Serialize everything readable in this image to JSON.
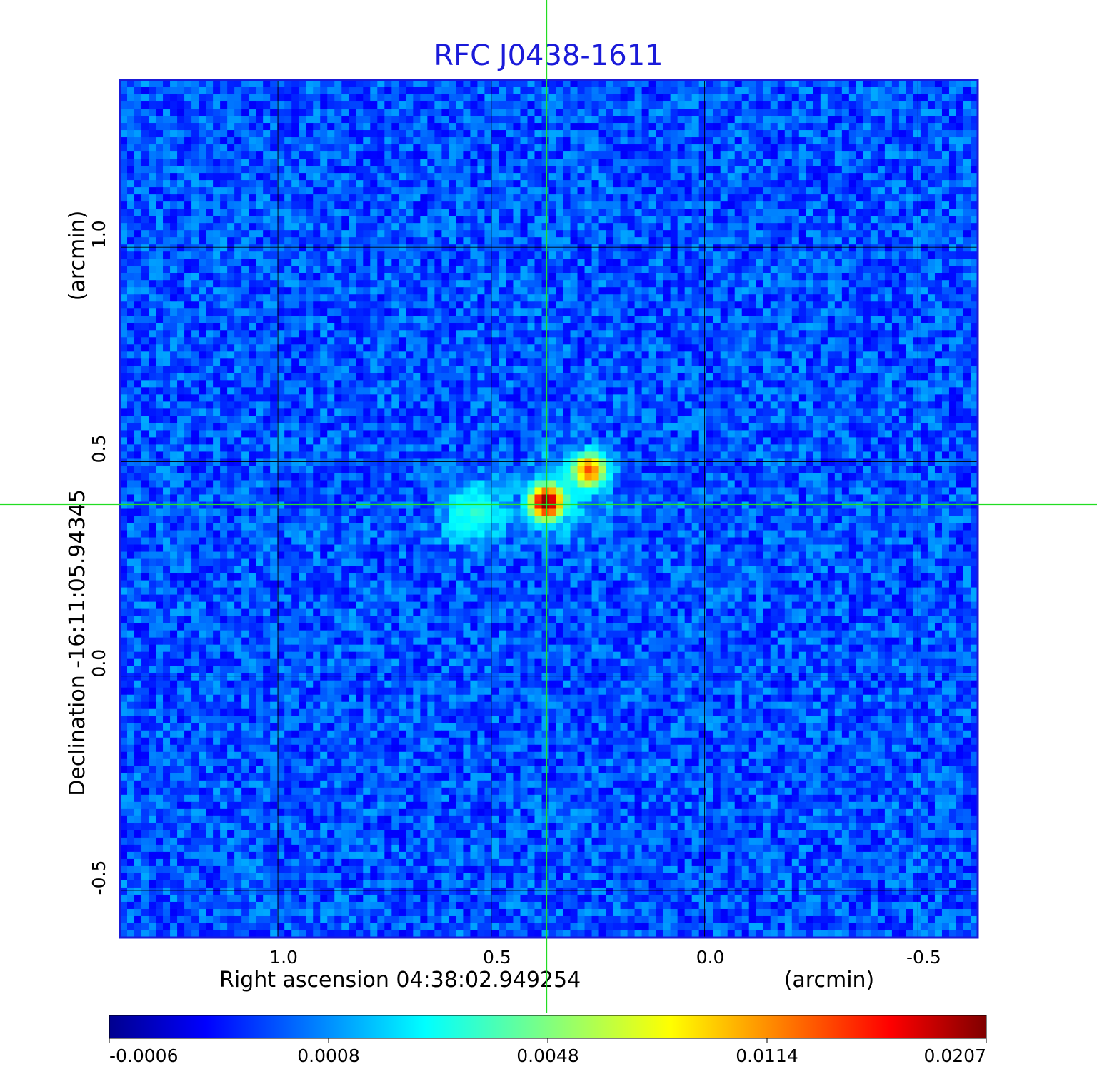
{
  "chart_data": {
    "type": "heatmap",
    "title": "RFC J0438-1611",
    "xlabel": "Right ascension  04:38:02.949254",
    "xunit": "(arcmin)",
    "ylabel": "Declination  -16:11:05.94345",
    "yunit": "(arcmin)",
    "xlim": [
      1.37,
      -0.64
    ],
    "ylim": [
      -0.61,
      1.39
    ],
    "x_ticks": [
      {
        "value": 1.0,
        "label": "1.0"
      },
      {
        "value": 0.5,
        "label": "0.5"
      },
      {
        "value": 0.0,
        "label": "0.0"
      },
      {
        "value": -0.5,
        "label": "-0.5"
      }
    ],
    "y_ticks": [
      {
        "value": 1.0,
        "label": "1.0"
      },
      {
        "value": 0.5,
        "label": "0.5"
      },
      {
        "value": 0.0,
        "label": "0.0"
      },
      {
        "value": -0.5,
        "label": "-0.5"
      }
    ],
    "grid": true,
    "crosshair": {
      "x": 0.37,
      "y": 0.4
    },
    "colormap": "jet",
    "colorbar": {
      "placement": "bottom",
      "ticks": [
        {
          "value": -0.0006,
          "label": "-0.0006"
        },
        {
          "value": 0.0008,
          "label": "0.0008"
        },
        {
          "value": 0.0048,
          "label": "0.0048"
        },
        {
          "value": 0.0114,
          "label": "0.0114"
        },
        {
          "value": 0.0207,
          "label": "0.0207"
        }
      ]
    },
    "sources": [
      {
        "x": 0.37,
        "y": 0.405,
        "peak": 0.0207
      },
      {
        "x": 0.27,
        "y": 0.48,
        "peak": 0.012
      },
      {
        "x": 0.54,
        "y": 0.38,
        "peak": 0.0022
      }
    ],
    "background_level": 0.0
  }
}
